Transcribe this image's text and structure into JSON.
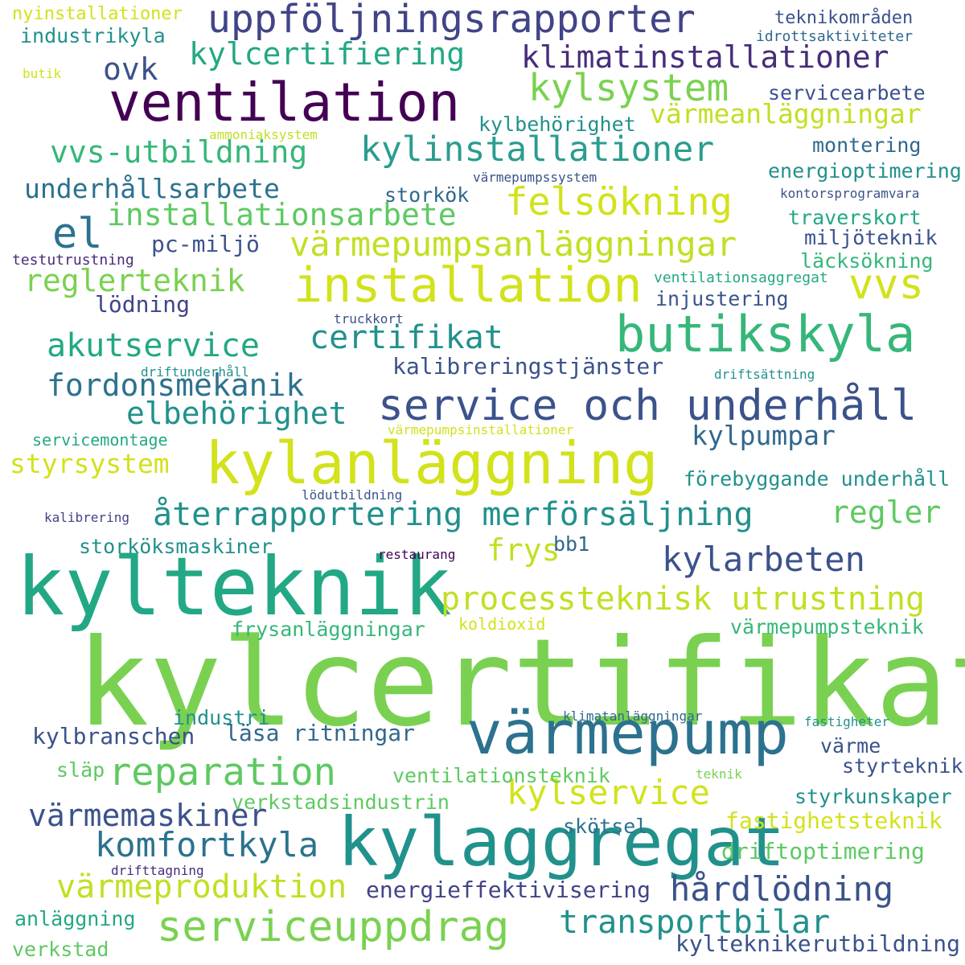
{
  "words": [
    {
      "text": "kylcertifikat",
      "color": "#7ad151"
    },
    {
      "text": "kylteknik",
      "color": "#22a884"
    },
    {
      "text": "kylaggregat",
      "color": "#21918c"
    },
    {
      "text": "värmepump",
      "color": "#2c728e"
    },
    {
      "text": "kylanläggning",
      "color": "#d2e21b"
    },
    {
      "text": "ventilation",
      "color": "#440154"
    },
    {
      "text": "butikskyla",
      "color": "#35b779"
    },
    {
      "text": "installation",
      "color": "#d2e21b"
    },
    {
      "text": "service och underhåll",
      "color": "#3b528b"
    },
    {
      "text": "serviceuppdrag",
      "color": "#7ad151"
    },
    {
      "text": "uppföljningsrapporter",
      "color": "#414487"
    },
    {
      "text": "reparation",
      "color": "#5ec962"
    },
    {
      "text": "felsökning",
      "color": "#d2e21b"
    },
    {
      "text": "kylsystem",
      "color": "#7ad151"
    },
    {
      "text": "kylinstallationer",
      "color": "#2a9d8f"
    },
    {
      "text": "värmepumpsanläggningar",
      "color": "#c2df23"
    },
    {
      "text": "kylarbeten",
      "color": "#3b528b"
    },
    {
      "text": "hårdlödning",
      "color": "#3b528b"
    },
    {
      "text": "kylservice",
      "color": "#d2e21b"
    },
    {
      "text": "komfortkyla",
      "color": "#2c728e"
    },
    {
      "text": "processteknisk utrustning",
      "color": "#c2df23"
    },
    {
      "text": "återrapportering merförsäljning",
      "color": "#21918c"
    },
    {
      "text": "certifikat",
      "color": "#21918c"
    },
    {
      "text": "akutservice",
      "color": "#22a884"
    },
    {
      "text": "vvs",
      "color": "#d2e21b"
    },
    {
      "text": "värmeproduktion",
      "color": "#c2df23"
    },
    {
      "text": "transportbilar",
      "color": "#21918c"
    },
    {
      "text": "kylcertifiering",
      "color": "#22a884"
    },
    {
      "text": "klimatinstallationer",
      "color": "#472d7b"
    },
    {
      "text": "vvs-utbildning",
      "color": "#35b779"
    },
    {
      "text": "installationsarbete",
      "color": "#5ec962"
    },
    {
      "text": "reglerteknik",
      "color": "#7ad151"
    },
    {
      "text": "fordonsmekanik",
      "color": "#2c728e"
    },
    {
      "text": "elbehörighet",
      "color": "#21918c"
    },
    {
      "text": "värmemaskiner",
      "color": "#3b528b"
    },
    {
      "text": "underhållsarbete",
      "color": "#2c728e"
    },
    {
      "text": "värmeanläggningar",
      "color": "#c2df23"
    },
    {
      "text": "kylpumpar",
      "color": "#31688e"
    },
    {
      "text": "styrsystem",
      "color": "#d2e21b"
    },
    {
      "text": "regler",
      "color": "#5ec962"
    },
    {
      "text": "frys",
      "color": "#c2df23"
    },
    {
      "text": "ovk",
      "color": "#3b528b"
    },
    {
      "text": "el",
      "color": "#2c728e"
    },
    {
      "text": "fastighetsteknik",
      "color": "#d2e21b"
    },
    {
      "text": "driftoptimering",
      "color": "#5ec962"
    },
    {
      "text": "energieffektivisering",
      "color": "#414487"
    },
    {
      "text": "kalibreringstjänster",
      "color": "#3b528b"
    },
    {
      "text": "kylbranschen",
      "color": "#3b528b"
    },
    {
      "text": "läsa ritningar",
      "color": "#31688e"
    },
    {
      "text": "lödning",
      "color": "#414487"
    },
    {
      "text": "pc-miljö",
      "color": "#3b528b"
    },
    {
      "text": "kylteknikerutbildning",
      "color": "#3b528b"
    },
    {
      "text": "industrikyla",
      "color": "#21918c"
    },
    {
      "text": "servicearbete",
      "color": "#3b528b"
    },
    {
      "text": "kylbehörighet",
      "color": "#21918c"
    },
    {
      "text": "montering",
      "color": "#31688e"
    },
    {
      "text": "energioptimering",
      "color": "#21918c"
    },
    {
      "text": "storkök",
      "color": "#31688e"
    },
    {
      "text": "traverskort",
      "color": "#22a884"
    },
    {
      "text": "miljöteknik",
      "color": "#3b528b"
    },
    {
      "text": "läcksökning",
      "color": "#35b779"
    },
    {
      "text": "injustering",
      "color": "#3b528b"
    },
    {
      "text": "förebyggande underhåll",
      "color": "#21918c"
    },
    {
      "text": "storköksmaskiner",
      "color": "#21918c"
    },
    {
      "text": "bb1",
      "color": "#31688e"
    },
    {
      "text": "frysanläggningar",
      "color": "#35b779"
    },
    {
      "text": "värmepumpsteknik",
      "color": "#35b779"
    },
    {
      "text": "industri",
      "color": "#21918c"
    },
    {
      "text": "värme",
      "color": "#3b528b"
    },
    {
      "text": "styrteknik",
      "color": "#3b528b"
    },
    {
      "text": "släp",
      "color": "#5ec962"
    },
    {
      "text": "ventilationsteknik",
      "color": "#5ec962"
    },
    {
      "text": "verkstadsindustrin",
      "color": "#5ec962"
    },
    {
      "text": "styrkunskaper",
      "color": "#21918c"
    },
    {
      "text": "skötsel",
      "color": "#2c728e"
    },
    {
      "text": "anläggning",
      "color": "#22a884"
    },
    {
      "text": "verkstad",
      "color": "#5ec962"
    },
    {
      "text": "nyinstallationer",
      "color": "#d2e21b"
    },
    {
      "text": "teknikområden",
      "color": "#3b528b"
    },
    {
      "text": "idrottsaktiviteter",
      "color": "#31688e"
    },
    {
      "text": "ventilationsaggregat",
      "color": "#22a884"
    },
    {
      "text": "testutrustning",
      "color": "#472d7b"
    },
    {
      "text": "servicemontage",
      "color": "#22a884"
    },
    {
      "text": "koldioxid",
      "color": "#d2e21b"
    },
    {
      "text": "kontorsprogramvara",
      "color": "#3b528b"
    },
    {
      "text": "truckkort",
      "color": "#3b528b"
    },
    {
      "text": "driftunderhåll",
      "color": "#21918c"
    },
    {
      "text": "driftsättning",
      "color": "#21918c"
    },
    {
      "text": "lödutbildning",
      "color": "#3b528b"
    },
    {
      "text": "kalibrering",
      "color": "#414487"
    },
    {
      "text": "restaurang",
      "color": "#440154"
    },
    {
      "text": "klimatanläggningar",
      "color": "#31688e"
    },
    {
      "text": "fastigheter",
      "color": "#21918c"
    },
    {
      "text": "teknik",
      "color": "#7ad151"
    },
    {
      "text": "drifttagning",
      "color": "#472d7b"
    },
    {
      "text": "butik",
      "color": "#d2e21b"
    },
    {
      "text": "ammoniaksystem",
      "color": "#c2df23"
    },
    {
      "text": "värmepumpssystem",
      "color": "#3b528b"
    },
    {
      "text": "värmepumpsinstallationer",
      "color": "#d2e21b"
    }
  ]
}
